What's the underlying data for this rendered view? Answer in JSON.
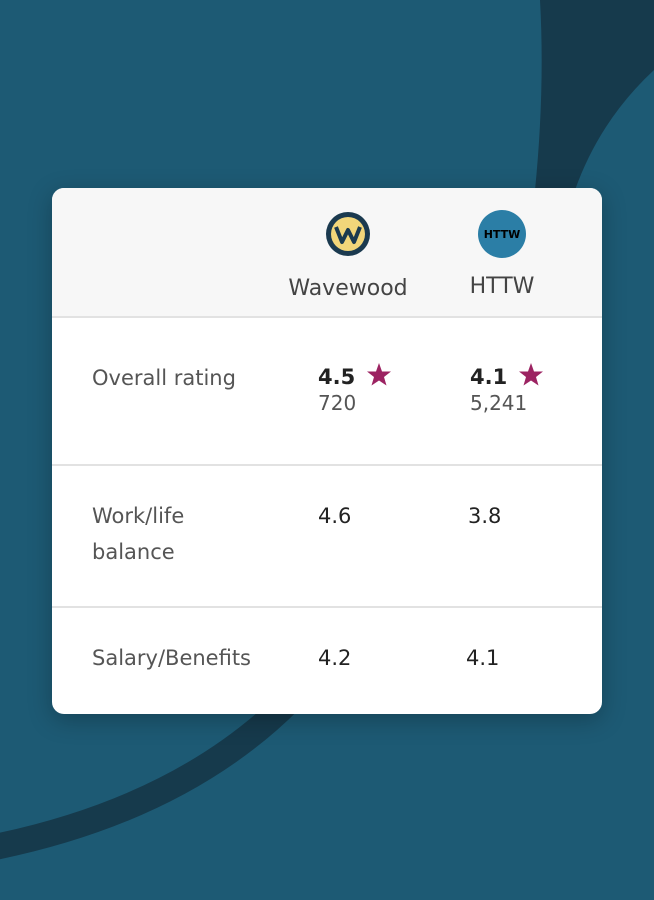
{
  "companies": [
    {
      "name": "Wavewood"
    },
    {
      "name": "HTTW",
      "logo_text": "HTTW"
    }
  ],
  "rows": [
    {
      "label": "Overall rating",
      "values": [
        {
          "rating": "4.5",
          "reviews": "720"
        },
        {
          "rating": "4.1",
          "reviews": "5,241"
        }
      ]
    },
    {
      "label": "Work/life balance",
      "values": [
        "4.6",
        "3.8"
      ]
    },
    {
      "label": "Salary/Benefits",
      "values": [
        "4.2",
        "4.1"
      ]
    }
  ]
}
